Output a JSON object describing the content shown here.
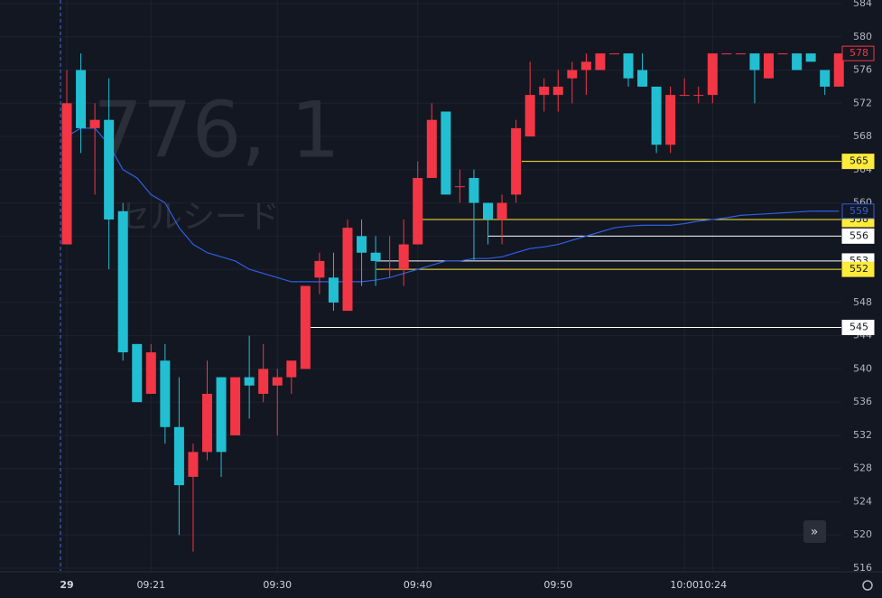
{
  "chart_data": {
    "type": "candlestick",
    "watermark": "776, 1",
    "watermark_sub": "セルシード",
    "categories": [
      "29",
      null,
      null,
      null,
      null,
      null,
      "09:21",
      null,
      null,
      null,
      null,
      null,
      null,
      null,
      null,
      "09:30",
      null,
      null,
      null,
      null,
      null,
      null,
      null,
      null,
      null,
      "09:40",
      null,
      null,
      null,
      null,
      null,
      null,
      null,
      null,
      null,
      "09:50",
      null,
      null,
      null,
      null,
      null,
      null,
      null,
      null,
      "10:00",
      null,
      "10:24",
      null,
      null,
      null,
      null,
      null,
      null,
      null,
      null,
      null
    ],
    "open": [
      555,
      576,
      569,
      570,
      559,
      543,
      537,
      541,
      533,
      527,
      530,
      539,
      532,
      539,
      537,
      538,
      539,
      540,
      551,
      551,
      547,
      556,
      554,
      552,
      552,
      555,
      563,
      571,
      562,
      563,
      560,
      558,
      561,
      568,
      573,
      573,
      575,
      576,
      576,
      578,
      578,
      576,
      574,
      567,
      573,
      573,
      573,
      578,
      578,
      578,
      575,
      578,
      578,
      578,
      576,
      574
    ],
    "high": [
      576,
      578,
      572,
      575,
      560,
      543,
      543,
      543,
      539,
      531,
      541,
      539,
      539,
      544,
      543,
      540,
      541,
      550,
      554,
      554,
      558,
      558,
      556,
      556,
      558,
      565,
      572,
      571,
      564,
      564,
      560,
      561,
      570,
      577,
      575,
      576,
      577,
      578,
      578,
      578,
      578,
      578,
      574,
      574,
      575,
      574,
      578,
      578,
      578,
      578,
      578,
      578,
      578,
      578,
      576,
      578
    ],
    "low": [
      555,
      566,
      561,
      552,
      541,
      536,
      537,
      531,
      520,
      518,
      529,
      527,
      532,
      534,
      536,
      532,
      537,
      540,
      549,
      547,
      547,
      550,
      550,
      551,
      550,
      555,
      563,
      561,
      560,
      553,
      555,
      555,
      560,
      568,
      571,
      571,
      572,
      573,
      576,
      578,
      574,
      574,
      566,
      566,
      573,
      572,
      572,
      578,
      578,
      572,
      575,
      578,
      576,
      577,
      573,
      574
    ],
    "close": [
      572,
      569,
      570,
      558,
      542,
      536,
      542,
      533,
      526,
      530,
      537,
      530,
      539,
      538,
      540,
      539,
      541,
      550,
      553,
      548,
      557,
      554,
      553,
      552,
      555,
      563,
      570,
      561,
      562,
      560,
      558,
      560,
      569,
      573,
      574,
      574,
      576,
      577,
      578,
      578,
      575,
      574,
      567,
      573,
      573,
      573,
      578,
      578,
      578,
      576,
      578,
      578,
      576,
      577,
      574,
      578
    ],
    "up_color": "#f23645",
    "down_color": "#22bfd3",
    "ma": {
      "color": "#2f5fe0",
      "values": [
        568,
        569,
        569,
        567,
        564,
        563,
        561,
        560,
        557,
        555,
        554,
        553.5,
        553,
        552,
        551.5,
        551,
        550.5,
        550.5,
        550.5,
        550.5,
        550.5,
        550.5,
        550.7,
        551,
        551.5,
        552,
        552.5,
        553,
        553,
        553.3,
        553.3,
        553.5,
        554,
        554.5,
        554.7,
        555,
        555.5,
        556,
        556.5,
        557,
        557.2,
        557.3,
        557.3,
        557.3,
        557.5,
        557.8,
        558,
        558.2,
        558.5,
        558.6,
        558.7,
        558.8,
        558.9,
        559,
        559,
        559
      ]
    },
    "price_lines": [
      {
        "value": 565,
        "color": "#ffeb3b"
      },
      {
        "value": 558,
        "color": "#ffeb3b"
      },
      {
        "value": 556,
        "color": "#ffffff"
      },
      {
        "value": 553,
        "color": "#ffffff"
      },
      {
        "value": 552,
        "color": "#ffeb3b"
      },
      {
        "value": 545,
        "color": "#ffffff"
      }
    ],
    "ylim": [
      516,
      584
    ],
    "yticks": [
      516,
      520,
      524,
      528,
      532,
      536,
      540,
      544,
      548,
      552,
      556,
      560,
      564,
      568,
      572,
      576,
      580,
      584
    ],
    "grid": true
  }
}
